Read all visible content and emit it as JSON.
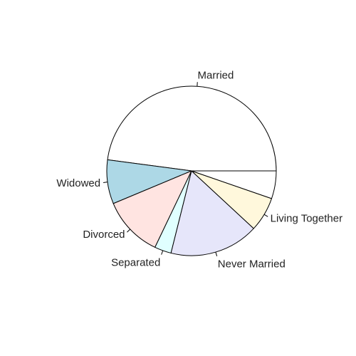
{
  "chart_data": {
    "type": "pie",
    "title": "",
    "direction": "counterclockwise",
    "start_angle_deg": 0,
    "slices": [
      {
        "label": "Married",
        "value": 47.9,
        "color": "#ffffff"
      },
      {
        "label": "Widowed",
        "value": 8.4,
        "color": "#add8e6"
      },
      {
        "label": "Divorced",
        "value": 11.6,
        "color": "#ffe4e1"
      },
      {
        "label": "Separated",
        "value": 3.2,
        "color": "#e0ffff"
      },
      {
        "label": "Never Married",
        "value": 17.0,
        "color": "#e6e6fa"
      },
      {
        "label": "Living Together",
        "value": 6.6,
        "color": "#fff8dc"
      },
      {
        "label": "",
        "value": 5.3,
        "color": "#ffffff"
      }
    ]
  }
}
